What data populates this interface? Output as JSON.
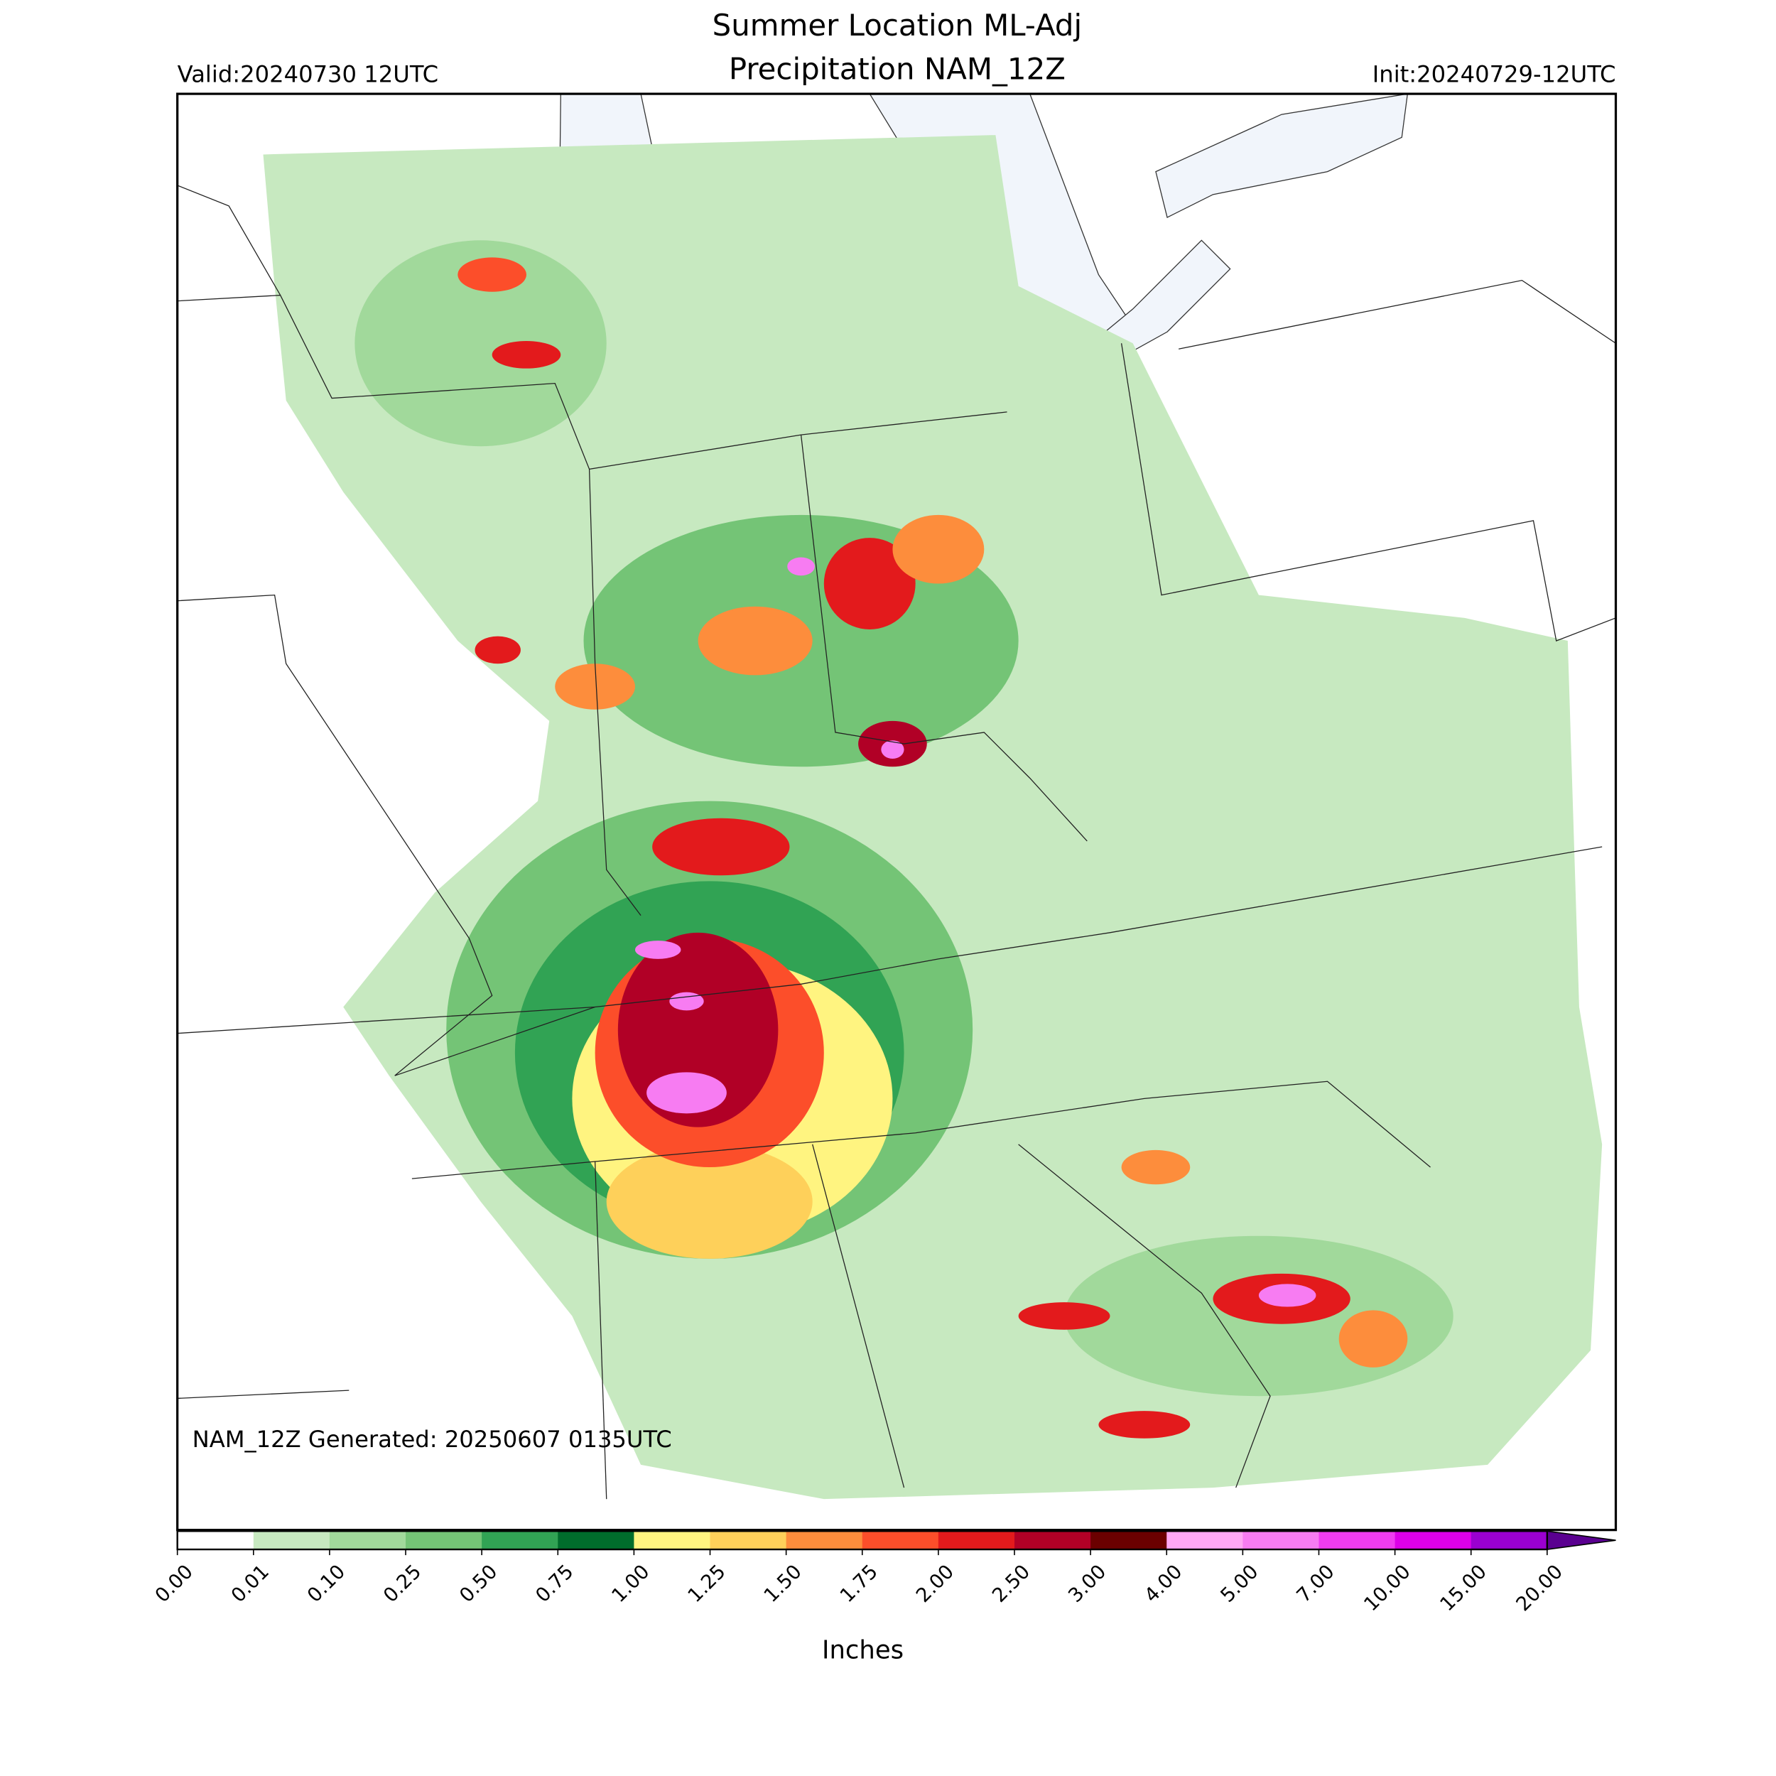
{
  "header": {
    "title_line1": "Summer Location ML-Adj",
    "title_line2": "Precipitation NAM_12Z",
    "valid": "Valid:20240730 12UTC",
    "init": "Init:20240729-12UTC"
  },
  "annotation": "NAM_12Z Generated: 20250607 0135UTC",
  "colorbar": {
    "label": "Inches",
    "ticks": [
      {
        "value": 0,
        "label": "0.00"
      },
      {
        "value": 0.01,
        "label": "0.01"
      },
      {
        "value": 0.1,
        "label": "0.10"
      },
      {
        "value": 0.25,
        "label": "0.25"
      },
      {
        "value": 0.5,
        "label": "0.50"
      },
      {
        "value": 0.75,
        "label": "0.75"
      },
      {
        "value": 1,
        "label": "1.00"
      },
      {
        "value": 1.25,
        "label": "1.25"
      },
      {
        "value": 1.5,
        "label": "1.50"
      },
      {
        "value": 1.75,
        "label": "1.75"
      },
      {
        "value": 2,
        "label": "2.00"
      },
      {
        "value": 2.5,
        "label": "2.50"
      },
      {
        "value": 3,
        "label": "3.00"
      },
      {
        "value": 4,
        "label": "4.00"
      },
      {
        "value": 5,
        "label": "5.00"
      },
      {
        "value": 7,
        "label": "7.00"
      },
      {
        "value": 10,
        "label": "10.00"
      },
      {
        "value": 15,
        "label": "15.00"
      },
      {
        "value": 20,
        "label": "20.00"
      }
    ],
    "colors": [
      "#ffffff",
      "#c7e9c0",
      "#a1d99b",
      "#74c476",
      "#31a354",
      "#006d2c",
      "#fff480",
      "#fed05a",
      "#fd8d3c",
      "#fc4e2a",
      "#e31a1c",
      "#b10026",
      "#6b0000",
      "#ffa8f5",
      "#f77cf2",
      "#f03cf0",
      "#dd00e8",
      "#9a00d0"
    ],
    "extend_color": "#5a0090"
  }
}
